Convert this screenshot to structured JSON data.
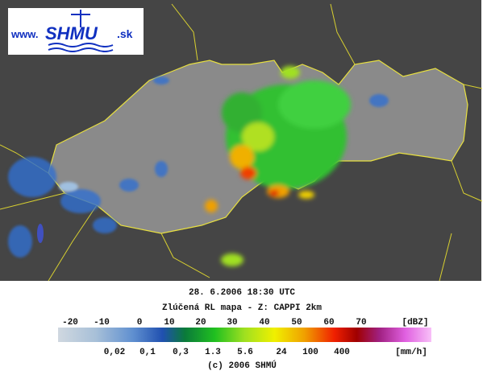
{
  "logo": {
    "prefix": "www.",
    "name": "SHMU",
    "suffix": ".sk"
  },
  "timestamp": "28. 6.2006 18:30 UTC",
  "product": "Zlúčená RL mapa - Z: CAPPI 2km",
  "legend": {
    "dbz_labels": [
      "-20",
      "-10",
      "0",
      "10",
      "20",
      "30",
      "40",
      "50",
      "60",
      "70"
    ],
    "dbz_unit": "[dBZ]",
    "rain_labels": [
      "0,02",
      "0,1",
      "0,3",
      "1.3",
      "5.6",
      "24",
      "100",
      "400"
    ],
    "rain_unit": "[mm/h]"
  },
  "copyright": "(c) 2006 SHMÚ"
}
